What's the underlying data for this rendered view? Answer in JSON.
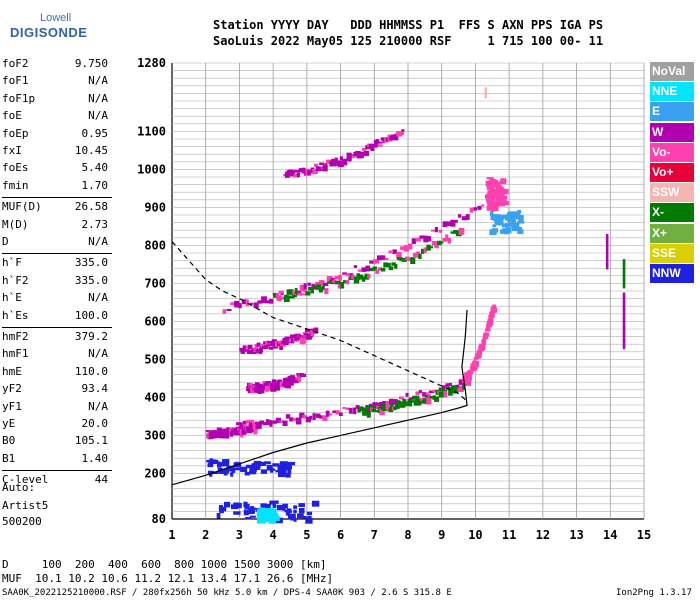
{
  "logo": {
    "top": "Lowell",
    "main": "DIGISONDE"
  },
  "header": {
    "line1": "Station YYYY DAY   DDD HHMMSS P1  FFS S AXN PPS IGA PS",
    "line2": "SaoLuis 2022 May05 125 210000 RSF     1 715 100 00- 11"
  },
  "params": [
    {
      "name": "foF2",
      "value": "9.750"
    },
    {
      "name": "foF1",
      "value": "N/A"
    },
    {
      "name": "foF1p",
      "value": "N/A"
    },
    {
      "name": "foE",
      "value": "N/A"
    },
    {
      "name": "foEp",
      "value": "0.95"
    },
    {
      "name": "fxI",
      "value": "10.45"
    },
    {
      "name": "foEs",
      "value": "5.40"
    },
    {
      "name": "fmin",
      "value": "1.70"
    },
    {
      "name": "MUF(D)",
      "value": "26.58"
    },
    {
      "name": "M(D)",
      "value": "2.73"
    },
    {
      "name": "D",
      "value": "N/A"
    },
    {
      "name": "h`F",
      "value": "335.0"
    },
    {
      "name": "h`F2",
      "value": "335.0"
    },
    {
      "name": "h`E",
      "value": "N/A"
    },
    {
      "name": "h`Es",
      "value": "100.0"
    },
    {
      "name": "hmF2",
      "value": "379.2"
    },
    {
      "name": "hmF1",
      "value": "N/A"
    },
    {
      "name": "hmE",
      "value": "110.0"
    },
    {
      "name": "yF2",
      "value": "93.4"
    },
    {
      "name": "yF1",
      "value": "N/A"
    },
    {
      "name": "yE",
      "value": "20.0"
    },
    {
      "name": "B0",
      "value": "105.1"
    },
    {
      "name": "B1",
      "value": "1.40"
    },
    {
      "name": "C-level",
      "value": "44"
    }
  ],
  "auto": {
    "line1": "Auto:",
    "line2": "Artist5",
    "line3": "500200"
  },
  "legend": [
    {
      "label": "NoVal",
      "color": "#a0a0a0"
    },
    {
      "label": "NNE",
      "color": "#00e5ff"
    },
    {
      "label": "E",
      "color": "#3aa0f0"
    },
    {
      "label": "W",
      "color": "#b000b0"
    },
    {
      "label": "Vo-",
      "color": "#ff40b0"
    },
    {
      "label": "Vo+",
      "color": "#e8003a"
    },
    {
      "label": "SSW",
      "color": "#f4b6b0"
    },
    {
      "label": "X-",
      "color": "#007a00"
    },
    {
      "label": "X+",
      "color": "#70b040"
    },
    {
      "label": "SSE",
      "color": "#d8d000"
    },
    {
      "label": "NNW",
      "color": "#2020e0"
    }
  ],
  "chart_data": {
    "type": "scatter",
    "xlim": [
      1,
      15
    ],
    "ylim": [
      80,
      1280
    ],
    "x_ticks": [
      1,
      2,
      3,
      4,
      5,
      6,
      7,
      8,
      9,
      10,
      11,
      12,
      13,
      14,
      15
    ],
    "y_ticks": [
      80,
      200,
      300,
      400,
      500,
      600,
      700,
      800,
      900,
      1000,
      1100,
      1280
    ],
    "grid": true,
    "profile_solid": [
      [
        1.0,
        170
      ],
      [
        2.0,
        195
      ],
      [
        3.0,
        225
      ],
      [
        4.0,
        255
      ],
      [
        5.0,
        280
      ],
      [
        6.0,
        300
      ],
      [
        7.0,
        320
      ],
      [
        8.0,
        340
      ],
      [
        9.0,
        360
      ],
      [
        9.5,
        372
      ],
      [
        9.75,
        379
      ],
      [
        9.7,
        420
      ],
      [
        9.6,
        480
      ],
      [
        9.7,
        560
      ],
      [
        9.75,
        630
      ]
    ],
    "profile_dashed": [
      [
        1.0,
        810
      ],
      [
        1.5,
        760
      ],
      [
        2.0,
        710
      ],
      [
        2.5,
        680
      ],
      [
        3.0,
        660
      ],
      [
        4.0,
        610
      ],
      [
        5.0,
        580
      ],
      [
        6.0,
        550
      ],
      [
        7.0,
        510
      ],
      [
        8.0,
        470
      ],
      [
        9.0,
        430
      ],
      [
        9.5,
        410
      ],
      [
        9.75,
        390
      ]
    ],
    "traces": [
      {
        "series": "W",
        "x0": 2.9,
        "x1": 9.7,
        "y0": 335,
        "y1": 445
      },
      {
        "series": "X-",
        "x0": 6.5,
        "x1": 9.7,
        "y0": 370,
        "y1": 440
      },
      {
        "series": "Vo-",
        "x0": 9.6,
        "x1": 10.5,
        "y0": 450,
        "y1": 650
      },
      {
        "series": "W",
        "x0": 2.5,
        "x1": 10.4,
        "y0": 640,
        "y1": 930
      },
      {
        "series": "X-",
        "x0": 4.0,
        "x1": 9.5,
        "y0": 670,
        "y1": 840
      },
      {
        "series": "W",
        "x0": 4.3,
        "x1": 7.8,
        "y0": 990,
        "y1": 1110
      },
      {
        "series": "W",
        "x0": 3.0,
        "x1": 5.2,
        "y0": 530,
        "y1": 580
      },
      {
        "series": "W",
        "x0": 2.0,
        "x1": 3.5,
        "y0": 310,
        "y1": 330
      },
      {
        "series": "W",
        "x0": 3.2,
        "x1": 4.8,
        "y0": 430,
        "y1": 460
      }
    ],
    "blobs": [
      {
        "series": "NNW",
        "x0": 2.3,
        "x1": 5.2,
        "y0": 80,
        "y1": 130
      },
      {
        "series": "NNW",
        "x0": 2.0,
        "x1": 4.5,
        "y0": 200,
        "y1": 240
      },
      {
        "series": "NNE",
        "x0": 3.5,
        "x1": 4.0,
        "y0": 80,
        "y1": 110
      },
      {
        "series": "E",
        "x0": 10.4,
        "x1": 11.3,
        "y0": 840,
        "y1": 895
      },
      {
        "series": "Vo-",
        "x0": 10.3,
        "x1": 10.8,
        "y0": 900,
        "y1": 980
      }
    ],
    "columns": [
      {
        "series": "W",
        "x": 13.9,
        "y0": 750,
        "y1": 830
      },
      {
        "series": "W",
        "x": 14.4,
        "y0": 540,
        "y1": 680
      },
      {
        "series": "X-",
        "x": 14.4,
        "y0": 700,
        "y1": 770
      },
      {
        "series": "SSW",
        "x": 10.3,
        "y0": 1200,
        "y1": 1220
      }
    ]
  },
  "footer": {
    "d_line": "D     100  200  400  600  800 1000 1500 3000 [km]",
    "muf_line": "MUF  10.1 10.2 10.6 11.2 12.1 13.4 17.1 26.6 [MHz]",
    "file_line": "SAA0K_2022125210000.RSF / 280fx256h 50 kHz 5.0 km / DPS-4 SAA0K 903 / 2.6 S 315.8 E",
    "version": "Ion2Png 1.3.17"
  }
}
